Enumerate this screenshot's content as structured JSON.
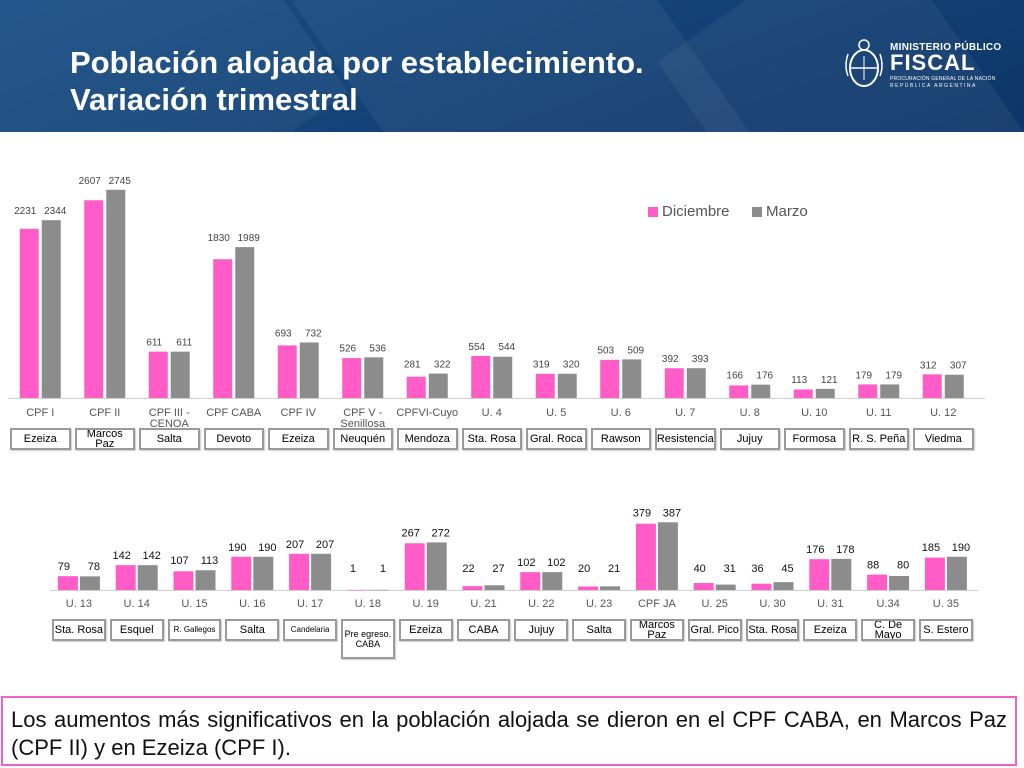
{
  "header": {
    "title_line1": "Población alojada por establecimiento.",
    "title_line2": "Variación trimestral"
  },
  "logo": {
    "line1": "MINISTERIO PÚBLICO",
    "line2": "FISCAL",
    "line3": "PROCURACIÓN GENERAL DE LA NACIÓN",
    "line4": "REPÚBLICA ARGENTINA"
  },
  "colors": {
    "diciembre": "#ff5cc8",
    "marzo": "#8c8c8c",
    "header_bg": "#154a80",
    "footer_border": "#f061c5"
  },
  "chart_data": [
    {
      "type": "bar",
      "legend": [
        "Diciembre",
        "Marzo"
      ],
      "legend_position": "top-right",
      "categories": [
        "CPF I",
        "CPF II",
        "CPF III - CENOA",
        "CPF CABA",
        "CPF IV",
        "CPF V - Senillosa",
        "CPFVI-Cuyo",
        "U. 4",
        "U. 5",
        "U. 6",
        "U. 7",
        "U. 8",
        "U. 10",
        "U. 11",
        "U. 12"
      ],
      "locations": [
        "Ezeiza",
        "Marcos Paz",
        "Salta",
        "Devoto",
        "Ezeiza",
        "Neuquén",
        "Mendoza",
        "Sta. Rosa",
        "Gral. Roca",
        "Rawson",
        "Resistencia",
        "Jujuy",
        "Formosa",
        "R. S. Peña",
        "Viedma"
      ],
      "series": [
        {
          "name": "Diciembre",
          "values": [
            2231,
            2607,
            611,
            1830,
            693,
            526,
            281,
            554,
            319,
            503,
            392,
            166,
            113,
            179,
            312
          ]
        },
        {
          "name": "Marzo",
          "values": [
            2344,
            2745,
            611,
            1989,
            732,
            536,
            322,
            544,
            320,
            509,
            393,
            176,
            121,
            179,
            307
          ]
        }
      ],
      "ylim": [
        0,
        2900
      ]
    },
    {
      "type": "bar",
      "categories": [
        "U. 13",
        "U. 14",
        "U. 15",
        "U. 16",
        "U. 17",
        "U. 18",
        "U. 19",
        "U. 21",
        "U. 22",
        "U. 23",
        "CPF JA",
        "U. 25",
        "U. 30",
        "U. 31",
        "U.34",
        "U. 35"
      ],
      "locations": [
        "Sta. Rosa",
        "Esquel",
        "R. Gallegos",
        "Salta",
        "Candelaria",
        "Pre egreso. CABA",
        "Ezeiza",
        "CABA",
        "Jujuy",
        "Salta",
        "Marcos Paz",
        "Gral. Pico",
        "Sta. Rosa",
        "Ezeiza",
        "C. De Mayo",
        "S. Estero"
      ],
      "series": [
        {
          "name": "Diciembre",
          "values": [
            79,
            142,
            107,
            190,
            207,
            1,
            267,
            22,
            102,
            20,
            379,
            40,
            36,
            176,
            88,
            185
          ]
        },
        {
          "name": "Marzo",
          "values": [
            78,
            142,
            113,
            190,
            207,
            1,
            272,
            27,
            102,
            21,
            387,
            31,
            45,
            178,
            80,
            190
          ]
        }
      ],
      "ylim": [
        0,
        400
      ]
    }
  ],
  "footer": {
    "text": "Los aumentos más significativos en la población alojada se dieron en el CPF CABA, en Marcos Paz (CPF II) y en Ezeiza (CPF I)."
  }
}
